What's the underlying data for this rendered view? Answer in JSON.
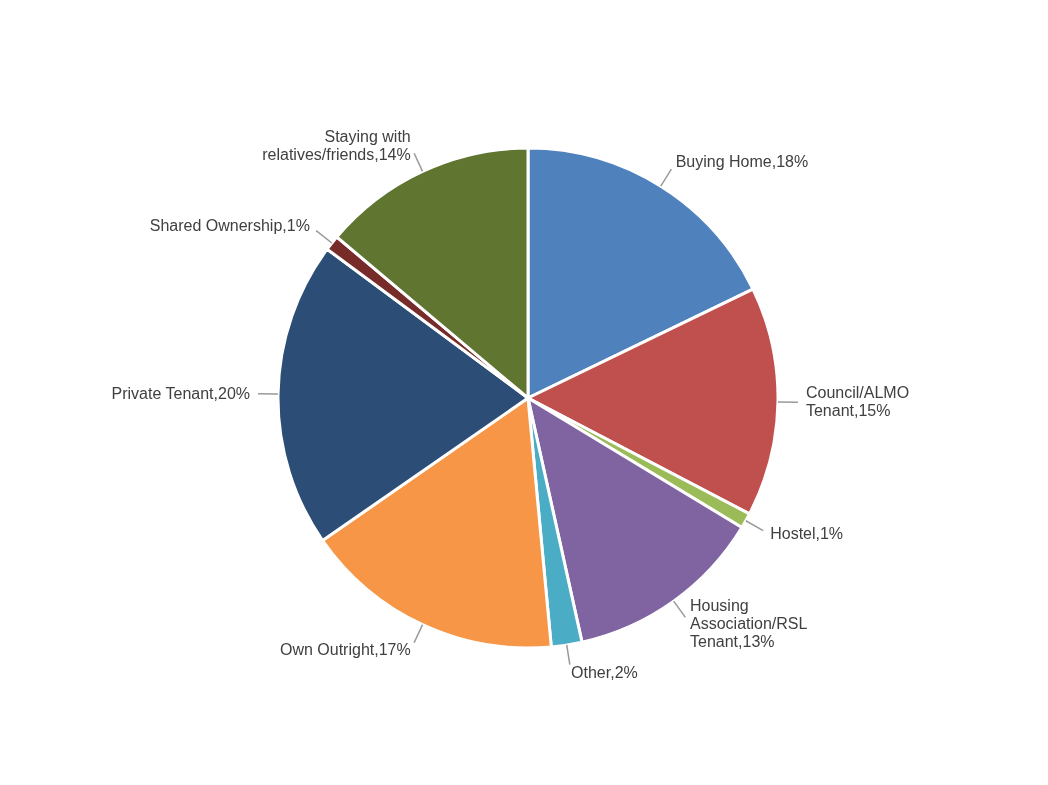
{
  "chart_data": {
    "type": "pie",
    "categories": [
      "Buying Home",
      "Council/ALMO Tenant",
      "Hostel",
      "Housing Association/RSL Tenant",
      "Other",
      "Own Outright",
      "Private Tenant",
      "Shared Ownership",
      "Staying with relatives/friends"
    ],
    "values": [
      18,
      15,
      1,
      13,
      2,
      17,
      20,
      1,
      14
    ],
    "value_labels": [
      "18%",
      "15%",
      "1%",
      "13%",
      "2%",
      "17%",
      "20%",
      "1%",
      "14%"
    ],
    "colors": [
      "#4f81bd",
      "#c0504d",
      "#9bbb59",
      "#8064a2",
      "#4bacc6",
      "#f79646",
      "#2c4d75",
      "#772c2a",
      "#5f7530"
    ],
    "legend": false
  }
}
